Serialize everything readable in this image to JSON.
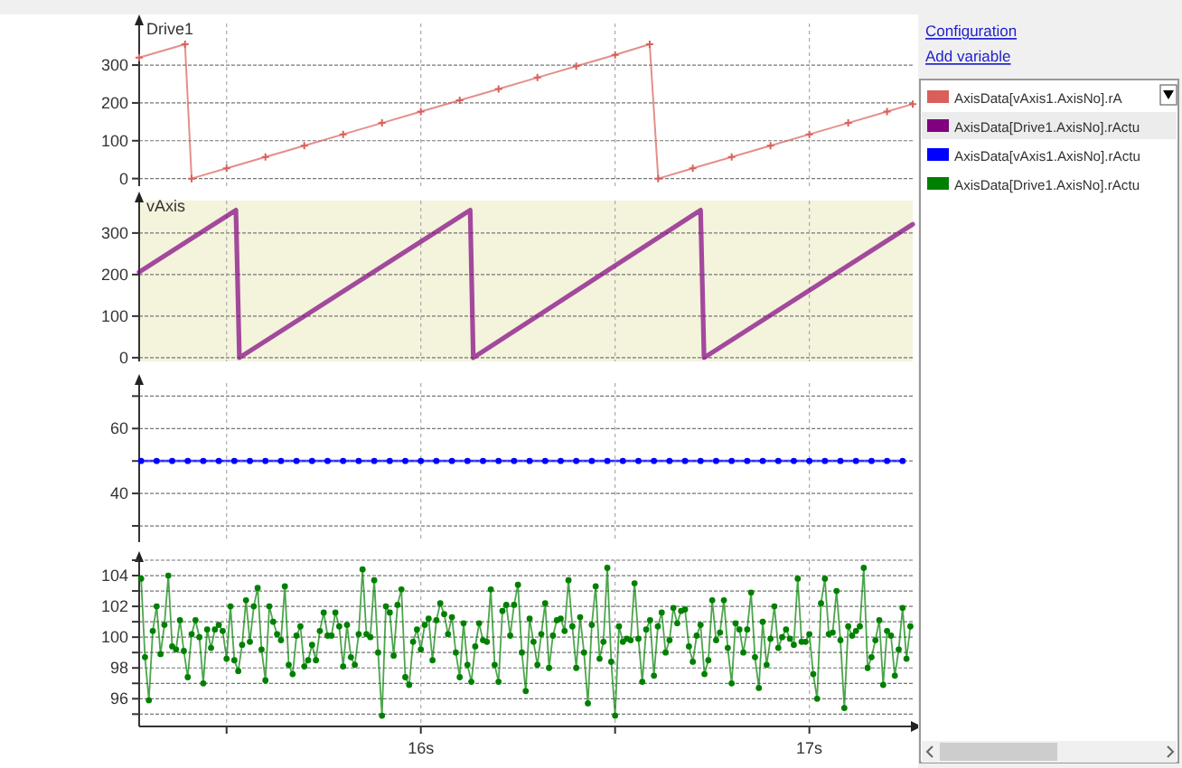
{
  "chart_data": [
    {
      "type": "line",
      "title": "Drive1",
      "annotations": [
        "Configuration",
        "Add variable"
      ],
      "xlim": [
        15.275,
        17.266
      ],
      "xticks": [
        {
          "value": 15.5,
          "label": null
        },
        {
          "value": 16,
          "label": null
        },
        {
          "value": 16.5,
          "label": null
        },
        {
          "value": 17,
          "label": null
        }
      ],
      "ylim": [
        -20,
        410
      ],
      "yticks": [
        0,
        100,
        200,
        300
      ],
      "grid": true,
      "tick_labels": "y",
      "legend": "right",
      "marker": "cross",
      "series": [
        {
          "name": "AxisData[vAxis1.AxisNo].rA",
          "color": "#d9605a",
          "x": [
            15.275,
            15.393,
            15.41,
            15.5,
            15.6,
            15.7,
            15.8,
            15.9,
            16.0,
            16.1,
            16.2,
            16.3,
            16.4,
            16.5,
            16.589,
            16.611,
            16.7,
            16.8,
            16.9,
            17.0,
            17.1,
            17.2,
            17.266
          ],
          "values": [
            320,
            355,
            0,
            27,
            57,
            87,
            117,
            147,
            177,
            207,
            237,
            267,
            297,
            327,
            355,
            0,
            27,
            57,
            87,
            117,
            147,
            177,
            197
          ]
        }
      ]
    },
    {
      "type": "line",
      "title": "vAxis",
      "xlim": [
        15.275,
        17.266
      ],
      "xticks": [
        {
          "value": 15.5,
          "label": null
        },
        {
          "value": 16,
          "label": null
        },
        {
          "value": 16.5,
          "label": null
        },
        {
          "value": 17,
          "label": null
        }
      ],
      "ylim": [
        -9,
        378
      ],
      "yticks": [
        0,
        100,
        200,
        300
      ],
      "grid": true,
      "tick_labels": "y",
      "legend": "right",
      "marker": "none",
      "series": [
        {
          "name": "AxisData[Drive1.AxisNo].rActu",
          "color": "#800080",
          "x": [
            15.275,
            15.524,
            15.533,
            16.127,
            16.135,
            16.72,
            16.729,
            17.266
          ],
          "values": [
            206,
            355,
            0,
            355,
            0,
            355,
            0,
            321
          ]
        }
      ]
    },
    {
      "type": "line",
      "xlim": [
        15.275,
        17.266
      ],
      "xticks": [
        {
          "value": 15.5,
          "label": null
        },
        {
          "value": 16,
          "label": null
        },
        {
          "value": 16.5,
          "label": null
        },
        {
          "value": 17,
          "label": null
        }
      ],
      "ylim": [
        25,
        74
      ],
      "yticks": [
        {
          "value": 30,
          "label": null
        },
        40,
        {
          "value": 50,
          "label": null
        },
        60,
        {
          "value": 70,
          "label": null
        }
      ],
      "grid": true,
      "tick_labels": "y",
      "legend": "right",
      "marker": "circle",
      "series": [
        {
          "name": "AxisData[vAxis1.AxisNo].rActu",
          "color": "#0000ff",
          "x": [
            15.28,
            15.32,
            15.36,
            15.4,
            15.44,
            15.48,
            15.52,
            15.56,
            15.6,
            15.64,
            15.68,
            15.72,
            15.76,
            15.8,
            15.84,
            15.88,
            15.92,
            15.96,
            16.0,
            16.04,
            16.08,
            16.12,
            16.16,
            16.2,
            16.24,
            16.28,
            16.32,
            16.36,
            16.4,
            16.44,
            16.48,
            16.52,
            16.56,
            16.6,
            16.64,
            16.68,
            16.72,
            16.76,
            16.8,
            16.84,
            16.88,
            16.92,
            16.96,
            17.0,
            17.04,
            17.08,
            17.12,
            17.16,
            17.2,
            17.24
          ],
          "values": [
            50,
            50,
            50,
            50,
            50,
            50,
            50,
            50,
            50,
            50,
            50,
            50,
            50,
            50,
            50,
            50,
            50,
            50,
            50,
            50,
            50,
            50,
            50,
            50,
            50,
            50,
            50,
            50,
            50,
            50,
            50,
            50,
            50,
            50,
            50,
            50,
            50,
            50,
            50,
            50,
            50,
            50,
            50,
            50,
            50,
            50,
            50,
            50,
            50,
            50
          ]
        }
      ]
    },
    {
      "type": "line",
      "xlim": [
        15.275,
        17.266
      ],
      "xticks": [
        {
          "value": 15.5,
          "label": null
        },
        {
          "value": 16,
          "label": "16s"
        },
        {
          "value": 16.5,
          "label": null
        },
        {
          "value": 17,
          "label": "17s"
        }
      ],
      "ylim": [
        94.2,
        105
      ],
      "yticks": [
        {
          "value": 95,
          "label": null
        },
        96,
        {
          "value": 97,
          "label": null
        },
        98,
        {
          "value": 99,
          "label": null
        },
        100,
        {
          "value": 101,
          "label": null
        },
        102,
        {
          "value": 103,
          "label": null
        },
        104,
        {
          "value": 105,
          "label": null
        }
      ],
      "grid": true,
      "legend": "right",
      "marker": "circle",
      "series": [
        {
          "name": "AxisData[Drive1.AxisNo].rActu",
          "color": "#008000",
          "x": [
            15.28,
            15.29,
            15.3,
            15.31,
            15.32,
            15.33,
            15.34,
            15.35,
            15.36,
            15.37,
            15.38,
            15.39,
            15.4,
            15.41,
            15.42,
            15.43,
            15.44,
            15.45,
            15.46,
            15.47,
            15.48,
            15.49,
            15.5,
            15.51,
            15.52,
            15.53,
            15.54,
            15.55,
            15.56,
            15.57,
            15.58,
            15.59,
            15.6,
            15.61,
            15.62,
            15.63,
            15.64,
            15.65,
            15.66,
            15.67,
            15.68,
            15.69,
            15.7,
            15.71,
            15.72,
            15.73,
            15.74,
            15.75,
            15.76,
            15.77,
            15.78,
            15.79,
            15.8,
            15.81,
            15.82,
            15.83,
            15.84,
            15.85,
            15.86,
            15.87,
            15.88,
            15.89,
            15.9,
            15.91,
            15.92,
            15.93,
            15.94,
            15.95,
            15.96,
            15.97,
            15.98,
            15.99,
            16.0,
            16.01,
            16.02,
            16.03,
            16.04,
            16.05,
            16.06,
            16.07,
            16.08,
            16.09,
            16.1,
            16.11,
            16.12,
            16.13,
            16.14,
            16.15,
            16.16,
            16.17,
            16.18,
            16.19,
            16.2,
            16.21,
            16.22,
            16.23,
            16.24,
            16.25,
            16.26,
            16.27,
            16.28,
            16.29,
            16.3,
            16.31,
            16.32,
            16.33,
            16.34,
            16.35,
            16.36,
            16.37,
            16.38,
            16.39,
            16.4,
            16.41,
            16.42,
            16.43,
            16.44,
            16.45,
            16.46,
            16.47,
            16.48,
            16.49,
            16.5,
            16.51,
            16.52,
            16.53,
            16.54,
            16.55,
            16.56,
            16.57,
            16.58,
            16.59,
            16.6,
            16.61,
            16.62,
            16.63,
            16.64,
            16.65,
            16.66,
            16.67,
            16.68,
            16.69,
            16.7,
            16.71,
            16.72,
            16.73,
            16.74,
            16.75,
            16.76,
            16.77,
            16.78,
            16.79,
            16.8,
            16.81,
            16.82,
            16.83,
            16.84,
            16.85,
            16.86,
            16.87,
            16.88,
            16.89,
            16.9,
            16.91,
            16.92,
            16.93,
            16.94,
            16.95,
            16.96,
            16.97,
            16.98,
            16.99,
            17.0,
            17.01,
            17.02,
            17.03,
            17.04,
            17.05,
            17.06,
            17.07,
            17.08,
            17.09,
            17.1,
            17.11,
            17.12,
            17.13,
            17.14,
            17.15,
            17.16,
            17.17,
            17.18,
            17.19,
            17.2,
            17.21,
            17.22,
            17.23,
            17.24,
            17.25,
            17.26
          ],
          "values": [
            103.8,
            98.7,
            95.9,
            100.4,
            102,
            98.9,
            100.8,
            104,
            99.4,
            99.2,
            101.1,
            99.1,
            97.4,
            100.2,
            101.1,
            100,
            97,
            100.5,
            99.3,
            100.5,
            100.8,
            100.4,
            98.6,
            102,
            98.5,
            97.8,
            99.5,
            102.4,
            99.7,
            102,
            103.2,
            99.2,
            97.2,
            102,
            101,
            100.2,
            99.8,
            103.3,
            98.2,
            97.6,
            100.1,
            100.7,
            98.1,
            98.5,
            99.5,
            98.5,
            100.4,
            101.6,
            100.1,
            100.1,
            101.6,
            100.7,
            98.1,
            100.8,
            98.7,
            98.2,
            100.2,
            104.4,
            100.2,
            100,
            103.7,
            99,
            94.9,
            102,
            101.6,
            98.8,
            102.1,
            103.1,
            97.4,
            96.9,
            99.7,
            100.5,
            99.2,
            100.8,
            101.2,
            98.5,
            101.1,
            102.2,
            101.5,
            100.2,
            101.3,
            99,
            97.4,
            100.9,
            98.2,
            97.1,
            99.4,
            100.9,
            99.8,
            99.7,
            103.1,
            98.2,
            97.1,
            101.7,
            102.1,
            100.1,
            102.1,
            103.4,
            99,
            96.5,
            101.2,
            99.7,
            98.2,
            100.2,
            102.2,
            98,
            100.1,
            101.1,
            101.2,
            100.4,
            103.7,
            100.7,
            98,
            101.3,
            99,
            95.7,
            100.8,
            103.3,
            98.6,
            99.7,
            104.5,
            98.4,
            94.9,
            100.7,
            99.7,
            99.9,
            99.8,
            103.5,
            99.9,
            97.1,
            100.5,
            101.1,
            97.5,
            100.7,
            101.6,
            99,
            99.8,
            101.9,
            100.9,
            101.7,
            101.8,
            99.4,
            98.4,
            100.1,
            100.8,
            97.6,
            98.5,
            102.4,
            99.8,
            100.3,
            102.4,
            99.3,
            97,
            100.9,
            100.5,
            99,
            100.5,
            102.9,
            98.7,
            96.7,
            101,
            98.2,
            99.9,
            102,
            99.3,
            100,
            100.5,
            99.9,
            99.5,
            103.8,
            99.7,
            99.7,
            100.2,
            97.6,
            96,
            102.2,
            103.8,
            100.2,
            100.3,
            103,
            99.8,
            95.4,
            100.7,
            100.1,
            100.4,
            100.7,
            104.5,
            98,
            98.7,
            99.8,
            101.1,
            96.9,
            100.4,
            100.1,
            97.5,
            99.2,
            101.9,
            98.6,
            100.7
          ]
        }
      ]
    }
  ]
}
